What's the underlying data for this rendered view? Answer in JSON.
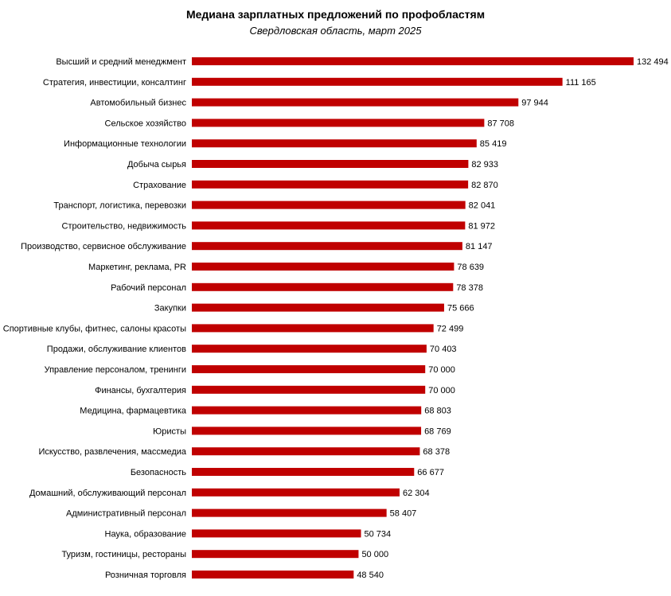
{
  "chart_data": {
    "type": "bar",
    "orientation": "horizontal",
    "title": "Медиана зарплатных предложений по профобластям",
    "subtitle": "Свердловская область, март 2025",
    "xlabel": "",
    "ylabel": "",
    "bar_color": "#c00000",
    "categories": [
      "Высший и средний менеджмент",
      "Стратегия, инвестиции, консалтинг",
      "Автомобильный бизнес",
      "Сельское хозяйство",
      "Информационные технологии",
      "Добыча сырья",
      "Страхование",
      "Транспорт, логистика, перевозки",
      "Строительство, недвижимость",
      "Производство, сервисное обслуживание",
      "Маркетинг, реклама, PR",
      "Рабочий  персонал",
      "Закупки",
      "Спортивные клубы, фитнес, салоны красоты",
      "Продажи, обслуживание клиентов",
      "Управление персоналом, тренинги",
      "Финансы, бухгалтерия",
      "Медицина,  фармацевтика",
      "Юристы",
      "Искусство, развлечения, массмедиа",
      "Безопасность",
      "Домашний, обслуживающий персонал",
      "Административный персонал",
      "Наука, образование",
      "Туризм, гостиницы, рестораны",
      "Розничная торговля"
    ],
    "values": [
      132494,
      111165,
      97944,
      87708,
      85419,
      82933,
      82870,
      82041,
      81972,
      81147,
      78639,
      78378,
      75666,
      72499,
      70403,
      70000,
      70000,
      68803,
      68769,
      68378,
      66677,
      62304,
      58407,
      50734,
      50000,
      48540
    ],
    "value_labels": [
      "132 494",
      "111 165",
      "97 944",
      "87 708",
      "85 419",
      "82 933",
      "82 870",
      "82 041",
      "81 972",
      "81 147",
      "78 639",
      "78 378",
      "75 666",
      "72 499",
      "70 403",
      "70 000",
      "70 000",
      "68 803",
      "68 769",
      "68 378",
      "66 677",
      "62 304",
      "58 407",
      "50 734",
      "50 000",
      "48 540"
    ],
    "xlim": [
      0,
      132494
    ]
  }
}
